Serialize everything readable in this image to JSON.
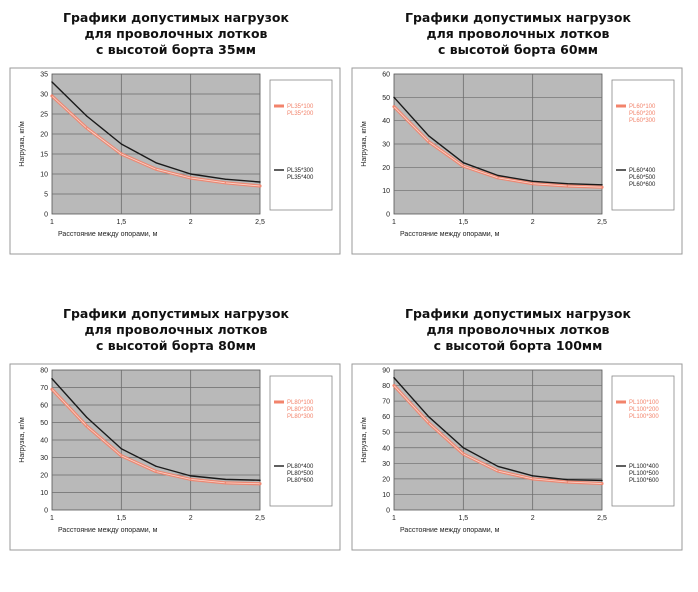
{
  "colors": {
    "plot_bg": "#b9b9b9",
    "grid": "#6c6c6c",
    "frame": "#9a9a9a",
    "series_low": "#f2836b",
    "series_high": "#1a1a1a"
  },
  "chart_data": [
    {
      "type": "line",
      "title": [
        "Графики допустимых нагрузок",
        "для проволочных лотков",
        "с высотой борта 35мм"
      ],
      "xlabel": "Расстояние между опорами, м",
      "ylabel": "Нагрузка, кг/м",
      "xlim": [
        1,
        2.5
      ],
      "ylim": [
        0,
        35
      ],
      "xticks": [
        "1",
        "1,5",
        "2",
        "2,5"
      ],
      "yticks": [
        0,
        5,
        10,
        15,
        20,
        25,
        30,
        35
      ],
      "grid": true,
      "legend_position": "right",
      "series": [
        {
          "name": "PL35*100\nPL35*200",
          "color": "#f2836b",
          "x": [
            1,
            1.25,
            1.5,
            1.75,
            2,
            2.25,
            2.5
          ],
          "y": [
            29.5,
            21.5,
            15,
            11.2,
            9,
            7.8,
            7
          ]
        },
        {
          "name": "PL35*300\nPL35*400",
          "color": "#1a1a1a",
          "x": [
            1,
            1.25,
            1.5,
            1.75,
            2,
            2.25,
            2.5
          ],
          "y": [
            33,
            24.5,
            17.5,
            12.8,
            10,
            8.7,
            8
          ]
        }
      ]
    },
    {
      "type": "line",
      "title": [
        "Графики допустимых нагрузок",
        "для проволочных лотков",
        "с высотой борта 60мм"
      ],
      "xlabel": "Расстояние между опорами, м",
      "ylabel": "Нагрузка, кг/м",
      "xlim": [
        1,
        2.5
      ],
      "ylim": [
        0,
        60
      ],
      "xticks": [
        "1",
        "1,5",
        "2",
        "2,5"
      ],
      "yticks": [
        0,
        10,
        20,
        30,
        40,
        50,
        60
      ],
      "grid": true,
      "legend_position": "right",
      "series": [
        {
          "name": "PL60*100\nPL60*200\nPL60*300",
          "color": "#f2836b",
          "x": [
            1,
            1.25,
            1.5,
            1.75,
            2,
            2.25,
            2.5
          ],
          "y": [
            46,
            31,
            20.5,
            15.5,
            13,
            12,
            11.5
          ]
        },
        {
          "name": "PL60*400\nPL60*500\nPL60*600",
          "color": "#1a1a1a",
          "x": [
            1,
            1.25,
            1.5,
            1.75,
            2,
            2.25,
            2.5
          ],
          "y": [
            50,
            33.5,
            22,
            16.5,
            14,
            13,
            12.5
          ]
        }
      ]
    },
    {
      "type": "line",
      "title": [
        "Графики допустимых нагрузок",
        "для проволочных лотков",
        "с высотой борта 80мм"
      ],
      "xlabel": "Расстояние между опорами, м",
      "ylabel": "Нагрузка, кг/м",
      "xlim": [
        1,
        2.5
      ],
      "ylim": [
        0,
        80
      ],
      "xticks": [
        "1",
        "1,5",
        "2",
        "2,5"
      ],
      "yticks": [
        0,
        10,
        20,
        30,
        40,
        50,
        60,
        70,
        80
      ],
      "grid": true,
      "legend_position": "right",
      "series": [
        {
          "name": "PL80*100\nPL80*200\nPL80*300",
          "color": "#f2836b",
          "x": [
            1,
            1.25,
            1.5,
            1.75,
            2,
            2.25,
            2.5
          ],
          "y": [
            69,
            48,
            31,
            22,
            17.5,
            15.5,
            15
          ]
        },
        {
          "name": "PL80*400\nPL80*500\nPL80*600",
          "color": "#1a1a1a",
          "x": [
            1,
            1.25,
            1.5,
            1.75,
            2,
            2.25,
            2.5
          ],
          "y": [
            75,
            53,
            35,
            25,
            19.5,
            17.5,
            17
          ]
        }
      ]
    },
    {
      "type": "line",
      "title": [
        "Графики допустимых нагрузок",
        "для проволочных лотков",
        "с высотой борта 100мм"
      ],
      "xlabel": "Расстояние между опорами, м",
      "ylabel": "Нагрузка, кг/м",
      "xlim": [
        1,
        2.5
      ],
      "ylim": [
        0,
        90
      ],
      "xticks": [
        "1",
        "1,5",
        "2",
        "2,5"
      ],
      "yticks": [
        0,
        10,
        20,
        30,
        40,
        50,
        60,
        70,
        80,
        90
      ],
      "grid": true,
      "legend_position": "right",
      "series": [
        {
          "name": "PL100*100\nPL100*200\nPL100*300",
          "color": "#f2836b",
          "x": [
            1,
            1.25,
            1.5,
            1.75,
            2,
            2.25,
            2.5
          ],
          "y": [
            80,
            56,
            36,
            25,
            20,
            18,
            17
          ]
        },
        {
          "name": "PL100*400\nPL100*500\nPL100*600",
          "color": "#1a1a1a",
          "x": [
            1,
            1.25,
            1.5,
            1.75,
            2,
            2.25,
            2.5
          ],
          "y": [
            85,
            60,
            40,
            28,
            22,
            19.5,
            19
          ]
        }
      ]
    }
  ]
}
